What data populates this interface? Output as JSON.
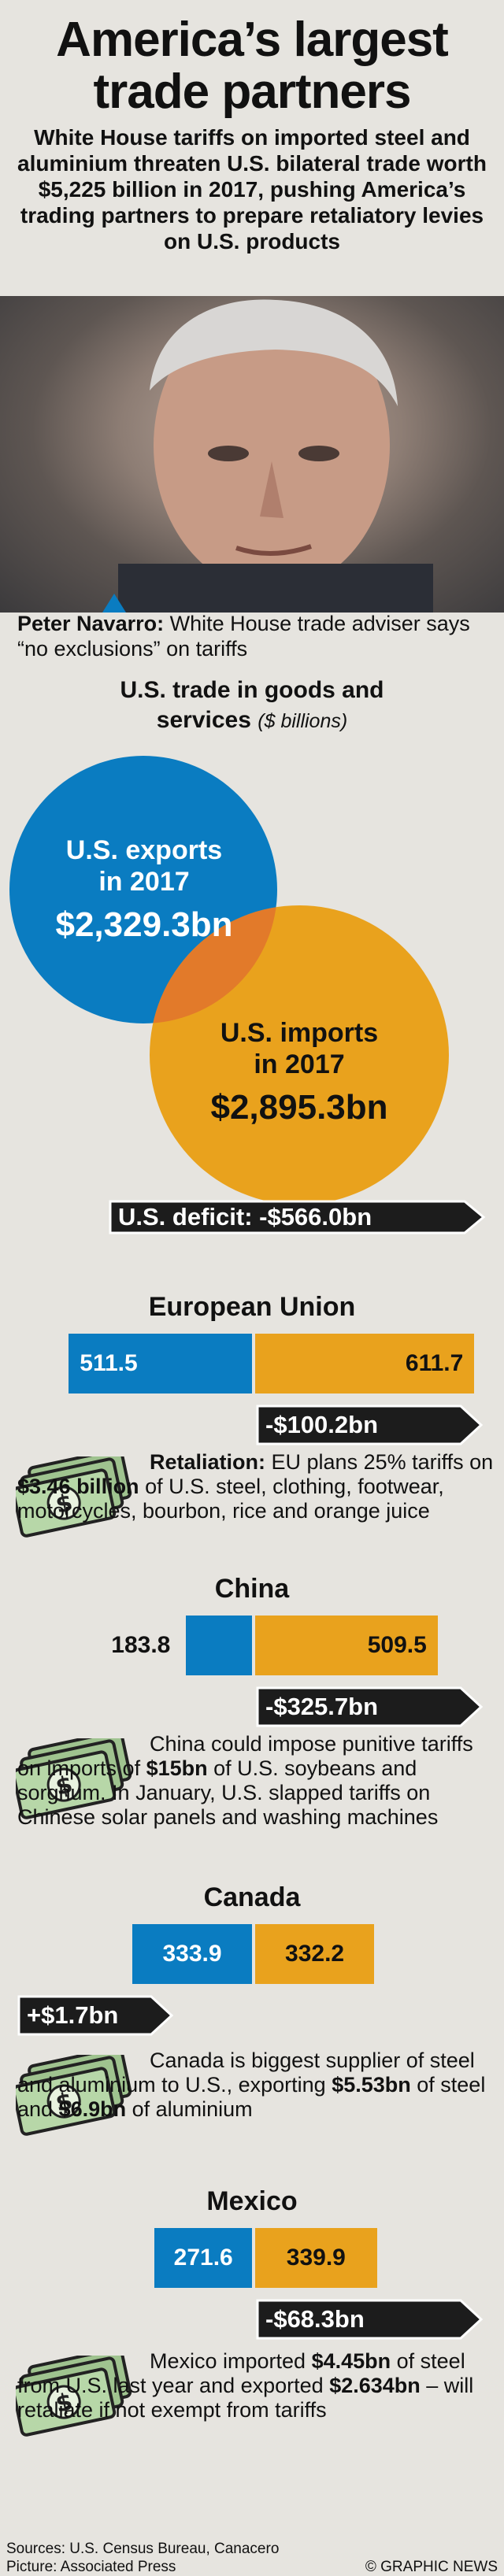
{
  "header": {
    "title_line1": "America’s largest",
    "title_line2": "trade partners",
    "subtitle": "White House tariffs on imported steel and aluminium threaten U.S. bilateral trade worth $5,225 billion in 2017, pushing America’s trading partners to prepare retaliatory levies on U.S. products"
  },
  "photo": {
    "caption_name": "Peter Navarro:",
    "caption_text": " White House trade adviser says “no exclusions” on tariffs"
  },
  "trade": {
    "heading": "U.S. trade in goods and",
    "heading2": "services",
    "unit": "($ billions)",
    "exports_label1": "U.S. exports",
    "exports_label2": "in 2017",
    "exports_value": "$2,329.3bn",
    "imports_label1": "U.S. imports",
    "imports_label2": "in 2017",
    "imports_value": "$2,895.3bn",
    "deficit_label": "U.S. deficit: -$566.0bn"
  },
  "colors": {
    "exports": "#0a7cc1",
    "imports": "#e9a21d",
    "tag": "#1c1c1c"
  },
  "chart_data": {
    "type": "bar",
    "categories": [
      "European Union",
      "China",
      "Canada",
      "Mexico"
    ],
    "series": [
      {
        "values": [
          511.5,
          183.8,
          333.9,
          271.6
        ]
      },
      {
        "values": [
          611.7,
          509.5,
          332.2,
          339.9
        ]
      }
    ],
    "balances": [
      "-$100.2bn",
      "-$325.7bn",
      "+$1.7bn",
      "-$68.3bn"
    ],
    "totals": {
      "exports": 2329.3,
      "imports": 2895.3,
      "deficit": -566.0
    }
  },
  "sections": [
    {
      "title": "European Union",
      "export_label": "511.5",
      "import_label": "611.7",
      "balance": "-$100.2bn",
      "note_parts": [
        {
          "t": "Retaliation:",
          "b": true
        },
        {
          "t": " EU plans 25% tariffs on ",
          "b": false
        },
        {
          "t": "$3.46 billion",
          "b": true
        },
        {
          "t": " of U.S. steel, clothing, footwear, motorcycles, bourbon, rice and orange juice",
          "b": false
        }
      ]
    },
    {
      "title": "China",
      "export_label": "183.8",
      "import_label": "509.5",
      "balance": "-$325.7bn",
      "note_parts": [
        {
          "t": "China could impose punitive tariffs on imports of ",
          "b": false
        },
        {
          "t": "$15bn",
          "b": true
        },
        {
          "t": " of U.S. soybeans and sorghum. In January, U.S. slapped tariffs on Chinese solar panels and washing machines",
          "b": false
        }
      ]
    },
    {
      "title": "Canada",
      "export_label": "333.9",
      "import_label": "332.2",
      "balance": "+$1.7bn",
      "note_parts": [
        {
          "t": "Canada is biggest supplier of steel and aluminium to U.S., exporting ",
          "b": false
        },
        {
          "t": "$5.53bn",
          "b": true
        },
        {
          "t": " of steel and ",
          "b": false
        },
        {
          "t": "$6.9bn",
          "b": true
        },
        {
          "t": " of aluminium",
          "b": false
        }
      ]
    },
    {
      "title": "Mexico",
      "export_label": "271.6",
      "import_label": "339.9",
      "balance": "-$68.3bn",
      "note_parts": [
        {
          "t": "Mexico imported ",
          "b": false
        },
        {
          "t": "$4.45bn",
          "b": true
        },
        {
          "t": " of steel from U.S. last year and exported ",
          "b": false
        },
        {
          "t": "$2.634bn",
          "b": true
        },
        {
          "t": " – will retaliate if not exempt from tariffs",
          "b": false
        }
      ]
    }
  ],
  "footer": {
    "sources": "Sources: U.S. Census Bureau, Canacero",
    "picture": "Picture: Associated Press",
    "credit": "© GRAPHIC NEWS"
  }
}
